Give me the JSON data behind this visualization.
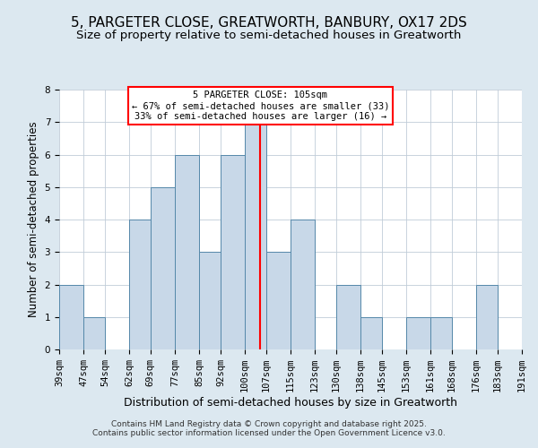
{
  "title": "5, PARGETER CLOSE, GREATWORTH, BANBURY, OX17 2DS",
  "subtitle": "Size of property relative to semi-detached houses in Greatworth",
  "xlabel": "Distribution of semi-detached houses by size in Greatworth",
  "ylabel": "Number of semi-detached properties",
  "bin_edges": [
    39,
    47,
    54,
    62,
    69,
    77,
    85,
    92,
    100,
    107,
    115,
    123,
    130,
    138,
    145,
    153,
    161,
    168,
    176,
    183,
    191
  ],
  "bin_labels": [
    "39sqm",
    "47sqm",
    "54sqm",
    "62sqm",
    "69sqm",
    "77sqm",
    "85sqm",
    "92sqm",
    "100sqm",
    "107sqm",
    "115sqm",
    "123sqm",
    "130sqm",
    "138sqm",
    "145sqm",
    "153sqm",
    "161sqm",
    "168sqm",
    "176sqm",
    "183sqm",
    "191sqm"
  ],
  "counts": [
    2,
    1,
    0,
    4,
    5,
    6,
    3,
    6,
    7,
    3,
    4,
    0,
    2,
    1,
    0,
    1,
    1,
    0,
    2,
    0
  ],
  "bar_color": "#c8d8e8",
  "bar_edge_color": "#5588aa",
  "property_line_x": 105,
  "property_line_color": "red",
  "annotation_line1": "5 PARGETER CLOSE: 105sqm",
  "annotation_line2": "← 67% of semi-detached houses are smaller (33)",
  "annotation_line3": "33% of semi-detached houses are larger (16) →",
  "annotation_box_color": "white",
  "annotation_box_edge_color": "red",
  "ylim": [
    0,
    8
  ],
  "yticks": [
    0,
    1,
    2,
    3,
    4,
    5,
    6,
    7,
    8
  ],
  "background_color": "#dce8f0",
  "plot_background_color": "#ffffff",
  "grid_color": "#c0ccd8",
  "footer_line1": "Contains HM Land Registry data © Crown copyright and database right 2025.",
  "footer_line2": "Contains public sector information licensed under the Open Government Licence v3.0.",
  "title_fontsize": 11,
  "subtitle_fontsize": 9.5,
  "xlabel_fontsize": 9,
  "ylabel_fontsize": 8.5,
  "tick_fontsize": 7.5,
  "annotation_fontsize": 7.5,
  "footer_fontsize": 6.5
}
